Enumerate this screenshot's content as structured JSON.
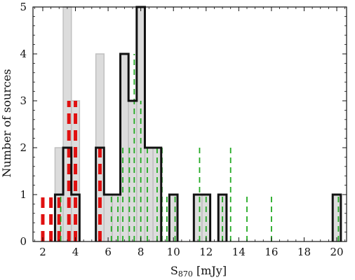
{
  "chart_data": {
    "type": "bar",
    "xlabel": "S",
    "xlabel_sub": "870",
    "xlabel_unit": " [mJy]",
    "ylabel": "Number of sources",
    "xlim": [
      1.4,
      20.6
    ],
    "ylim": [
      0,
      5
    ],
    "x_ticks": [
      2,
      4,
      6,
      8,
      10,
      12,
      14,
      16,
      18,
      20
    ],
    "y_ticks": [
      0,
      1,
      2,
      3,
      4,
      5
    ],
    "grey_histogram": {
      "bin_width": 0.5,
      "bins": [
        {
          "x": 3.0,
          "count": 2
        },
        {
          "x": 3.5,
          "count": 5
        },
        {
          "x": 4.0,
          "count": 3
        },
        {
          "x": 5.5,
          "count": 4
        },
        {
          "x": 6.0,
          "count": 1
        },
        {
          "x": 6.5,
          "count": 1
        },
        {
          "x": 7.0,
          "count": 4
        },
        {
          "x": 7.5,
          "count": 3
        },
        {
          "x": 8.0,
          "count": 5
        },
        {
          "x": 8.5,
          "count": 2
        },
        {
          "x": 9.0,
          "count": 2
        },
        {
          "x": 10.0,
          "count": 1
        },
        {
          "x": 11.5,
          "count": 1
        },
        {
          "x": 12.0,
          "count": 1
        },
        {
          "x": 13.0,
          "count": 1
        },
        {
          "x": 20.0,
          "count": 1
        }
      ]
    },
    "black_histogram": {
      "bin_width": 0.5,
      "bins": [
        {
          "x": 3.0,
          "count": 1
        },
        {
          "x": 3.5,
          "count": 2
        },
        {
          "x": 4.0,
          "count": 1
        },
        {
          "x": 5.5,
          "count": 2
        },
        {
          "x": 6.0,
          "count": 1
        },
        {
          "x": 6.5,
          "count": 1
        },
        {
          "x": 7.0,
          "count": 4
        },
        {
          "x": 7.5,
          "count": 3
        },
        {
          "x": 8.0,
          "count": 5
        },
        {
          "x": 8.5,
          "count": 2
        },
        {
          "x": 9.0,
          "count": 2
        },
        {
          "x": 10.0,
          "count": 1
        },
        {
          "x": 11.5,
          "count": 1
        },
        {
          "x": 12.0,
          "count": 1
        },
        {
          "x": 13.0,
          "count": 1
        },
        {
          "x": 20.0,
          "count": 1
        }
      ]
    },
    "red_dashed_lines": [
      {
        "x": 2.0,
        "height": 1
      },
      {
        "x": 2.5,
        "height": 1
      },
      {
        "x": 3.0,
        "height": 1
      },
      {
        "x": 3.6,
        "height": 3
      },
      {
        "x": 4.0,
        "height": 3
      },
      {
        "x": 5.5,
        "height": 2
      }
    ],
    "green_dashed_lines": [
      {
        "x": 3.1,
        "height": 1
      },
      {
        "x": 6.2,
        "height": 1
      },
      {
        "x": 6.6,
        "height": 1
      },
      {
        "x": 6.9,
        "height": 2
      },
      {
        "x": 7.3,
        "height": 2
      },
      {
        "x": 7.6,
        "height": 4
      },
      {
        "x": 8.0,
        "height": 3
      },
      {
        "x": 8.4,
        "height": 2
      },
      {
        "x": 9.0,
        "height": 2
      },
      {
        "x": 9.3,
        "height": 2
      },
      {
        "x": 9.6,
        "height": 1
      },
      {
        "x": 10.1,
        "height": 1
      },
      {
        "x": 11.6,
        "height": 2
      },
      {
        "x": 12.0,
        "height": 1
      },
      {
        "x": 13.0,
        "height": 1
      },
      {
        "x": 13.5,
        "height": 2
      },
      {
        "x": 14.5,
        "height": 1
      },
      {
        "x": 16.0,
        "height": 1
      },
      {
        "x": 20.1,
        "height": 1
      }
    ],
    "colors": {
      "grey_fill": "#dcdcdc",
      "grey_edge": "#c0c0c0",
      "black_line": "#111111",
      "red": "#e01010",
      "green": "#22aa22"
    },
    "grid": false,
    "legend": "none"
  }
}
